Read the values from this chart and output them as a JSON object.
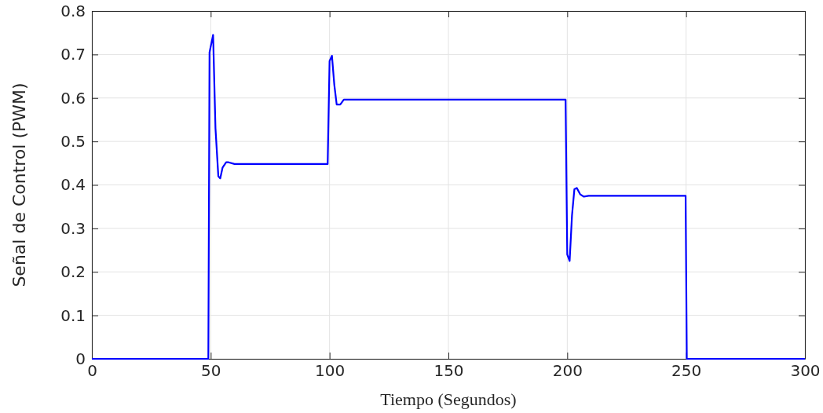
{
  "chart_data": {
    "type": "line",
    "xlabel": "Tiempo (Segundos)",
    "ylabel": "Señal de Control (PWM)",
    "x": [
      0,
      49,
      49.5,
      51,
      52,
      53.2,
      54,
      55,
      56.5,
      57.5,
      60,
      99,
      99.2,
      100,
      101,
      102,
      103,
      104.5,
      106,
      108,
      199,
      199.3,
      200,
      201,
      202,
      203,
      204,
      205.5,
      207,
      209,
      249.8,
      250.3,
      300
    ],
    "series": [
      {
        "color": "#0000ff",
        "values": [
          0,
          0,
          0.705,
          0.745,
          0.53,
          0.42,
          0.415,
          0.44,
          0.452,
          0.452,
          0.448,
          0.448,
          0.448,
          0.685,
          0.697,
          0.63,
          0.585,
          0.585,
          0.596,
          0.596,
          0.596,
          0.596,
          0.24,
          0.225,
          0.33,
          0.39,
          0.393,
          0.378,
          0.373,
          0.375,
          0.375,
          0,
          0
        ]
      }
    ],
    "xlim": [
      0,
      300
    ],
    "xticks": [
      0,
      50,
      100,
      150,
      200,
      250,
      300
    ],
    "ylim": [
      0,
      0.8
    ],
    "yticks": [
      0,
      0.1,
      0.2,
      0.3,
      0.4,
      0.5,
      0.6,
      0.7,
      0.8
    ],
    "grid": true,
    "marker": "none",
    "line_style": "solid"
  }
}
